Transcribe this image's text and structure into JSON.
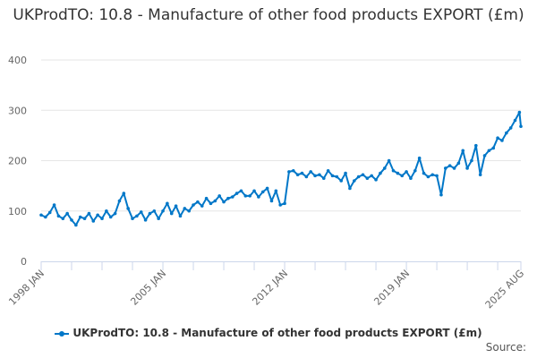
{
  "chart_data": {
    "type": "line",
    "title": "UKProdTO: 10.8 - Manufacture of other food products EXPORT (£m)",
    "xlabel": "",
    "ylabel": "",
    "ylim": [
      0,
      400
    ],
    "yticks": [
      "0",
      "100",
      "200",
      "300",
      "400"
    ],
    "xticks": [
      "1998 JAN",
      "2005 JAN",
      "2012 JAN",
      "2019 JAN",
      "2025 AUG"
    ],
    "xrange": [
      "1998-01",
      "2025-08"
    ],
    "grid": "horizontal",
    "legend": "bottom",
    "color": "#0077c8",
    "series": [
      {
        "name": "UKProdTO: 10.8 - Manufacture of other food products EXPORT (£m)",
        "x": [
          "1998-01",
          "1998-04",
          "1998-07",
          "1998-10",
          "1999-01",
          "1999-04",
          "1999-07",
          "1999-10",
          "2000-01",
          "2000-04",
          "2000-07",
          "2000-10",
          "2001-01",
          "2001-04",
          "2001-07",
          "2001-10",
          "2002-01",
          "2002-04",
          "2002-07",
          "2002-10",
          "2003-01",
          "2003-04",
          "2003-07",
          "2003-10",
          "2004-01",
          "2004-04",
          "2004-07",
          "2004-10",
          "2005-01",
          "2005-04",
          "2005-07",
          "2005-10",
          "2006-01",
          "2006-04",
          "2006-07",
          "2006-10",
          "2007-01",
          "2007-04",
          "2007-07",
          "2007-10",
          "2008-01",
          "2008-04",
          "2008-07",
          "2008-10",
          "2009-01",
          "2009-04",
          "2009-07",
          "2009-10",
          "2010-01",
          "2010-04",
          "2010-07",
          "2010-10",
          "2011-01",
          "2011-04",
          "2011-07",
          "2011-10",
          "2012-01",
          "2012-04",
          "2012-07",
          "2012-10",
          "2013-01",
          "2013-04",
          "2013-07",
          "2013-10",
          "2014-01",
          "2014-04",
          "2014-07",
          "2014-10",
          "2015-01",
          "2015-04",
          "2015-07",
          "2015-10",
          "2016-01",
          "2016-04",
          "2016-07",
          "2016-10",
          "2017-01",
          "2017-04",
          "2017-07",
          "2017-10",
          "2018-01",
          "2018-04",
          "2018-07",
          "2018-10",
          "2019-01",
          "2019-04",
          "2019-07",
          "2019-10",
          "2020-01",
          "2020-04",
          "2020-07",
          "2020-10",
          "2021-01",
          "2021-04",
          "2021-07",
          "2021-10",
          "2022-01",
          "2022-04",
          "2022-07",
          "2022-10",
          "2023-01",
          "2023-04",
          "2023-07",
          "2023-10",
          "2024-01",
          "2024-04",
          "2024-07",
          "2024-10",
          "2025-01",
          "2025-04",
          "2025-07",
          "2025-08"
        ],
        "values": [
          92,
          88,
          97,
          112,
          90,
          85,
          95,
          82,
          72,
          88,
          85,
          95,
          80,
          92,
          85,
          100,
          88,
          95,
          120,
          135,
          105,
          85,
          90,
          98,
          82,
          95,
          100,
          85,
          100,
          115,
          95,
          110,
          90,
          105,
          100,
          112,
          118,
          110,
          125,
          115,
          120,
          130,
          118,
          125,
          128,
          135,
          140,
          130,
          130,
          140,
          128,
          138,
          145,
          120,
          140,
          112,
          115,
          178,
          180,
          172,
          175,
          168,
          178,
          170,
          172,
          165,
          180,
          170,
          168,
          160,
          175,
          145,
          160,
          168,
          172,
          165,
          170,
          162,
          175,
          185,
          200,
          180,
          175,
          170,
          178,
          165,
          180,
          205,
          175,
          168,
          172,
          170,
          132,
          185,
          190,
          185,
          195,
          220,
          185,
          200,
          230,
          172,
          210,
          220,
          225,
          245,
          240,
          255,
          265,
          280,
          296,
          268
        ]
      }
    ]
  },
  "source_label": "Source:"
}
